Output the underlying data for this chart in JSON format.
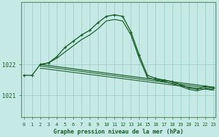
{
  "title": "Graphe pression niveau de la mer (hPa)",
  "bg_color": "#c5eae6",
  "grid_color": "#9ecfca",
  "line_color": "#1a5c28",
  "xlim": [
    -0.3,
    23.3
  ],
  "ylim": [
    1020.3,
    1024.0
  ],
  "yticks": [
    1021,
    1022
  ],
  "xticks": [
    0,
    1,
    2,
    3,
    4,
    5,
    6,
    7,
    8,
    9,
    10,
    11,
    12,
    13,
    14,
    15,
    16,
    17,
    18,
    19,
    20,
    21,
    22,
    23
  ],
  "series": [
    {
      "x": [
        0,
        1,
        2,
        3,
        4,
        5,
        6,
        7,
        8,
        9,
        10,
        11,
        12,
        13,
        14,
        15,
        16,
        17,
        18,
        19,
        20,
        21,
        22,
        23
      ],
      "y": [
        1021.65,
        1021.65,
        1022.0,
        1022.05,
        1022.25,
        1022.55,
        1022.75,
        1022.95,
        1023.1,
        1023.35,
        1023.55,
        1023.6,
        1023.55,
        1023.05,
        1022.3,
        1021.65,
        1021.55,
        1021.5,
        1021.45,
        1021.35,
        1021.25,
        1021.2,
        1021.3,
        1021.25
      ],
      "marker": true,
      "linewidth": 1.0
    },
    {
      "x": [
        2,
        3,
        4,
        5,
        6,
        7,
        8,
        9,
        10,
        11,
        12,
        13,
        14,
        15,
        16,
        17,
        18,
        19,
        20,
        21,
        22,
        23
      ],
      "y": [
        1022.0,
        1022.05,
        1022.2,
        1022.4,
        1022.6,
        1022.8,
        1022.95,
        1023.15,
        1023.4,
        1023.45,
        1023.4,
        1022.95,
        1022.2,
        1021.58,
        1021.5,
        1021.45,
        1021.38,
        1021.3,
        1021.2,
        1021.15,
        1021.22,
        1021.18
      ],
      "marker": false,
      "linewidth": 0.9
    },
    {
      "x": [
        2,
        23
      ],
      "y": [
        1022.0,
        1021.27
      ],
      "marker": false,
      "linewidth": 0.9
    },
    {
      "x": [
        2,
        23
      ],
      "y": [
        1021.95,
        1021.22
      ],
      "marker": false,
      "linewidth": 0.8
    },
    {
      "x": [
        2,
        23
      ],
      "y": [
        1021.88,
        1021.17
      ],
      "marker": false,
      "linewidth": 0.8
    }
  ]
}
